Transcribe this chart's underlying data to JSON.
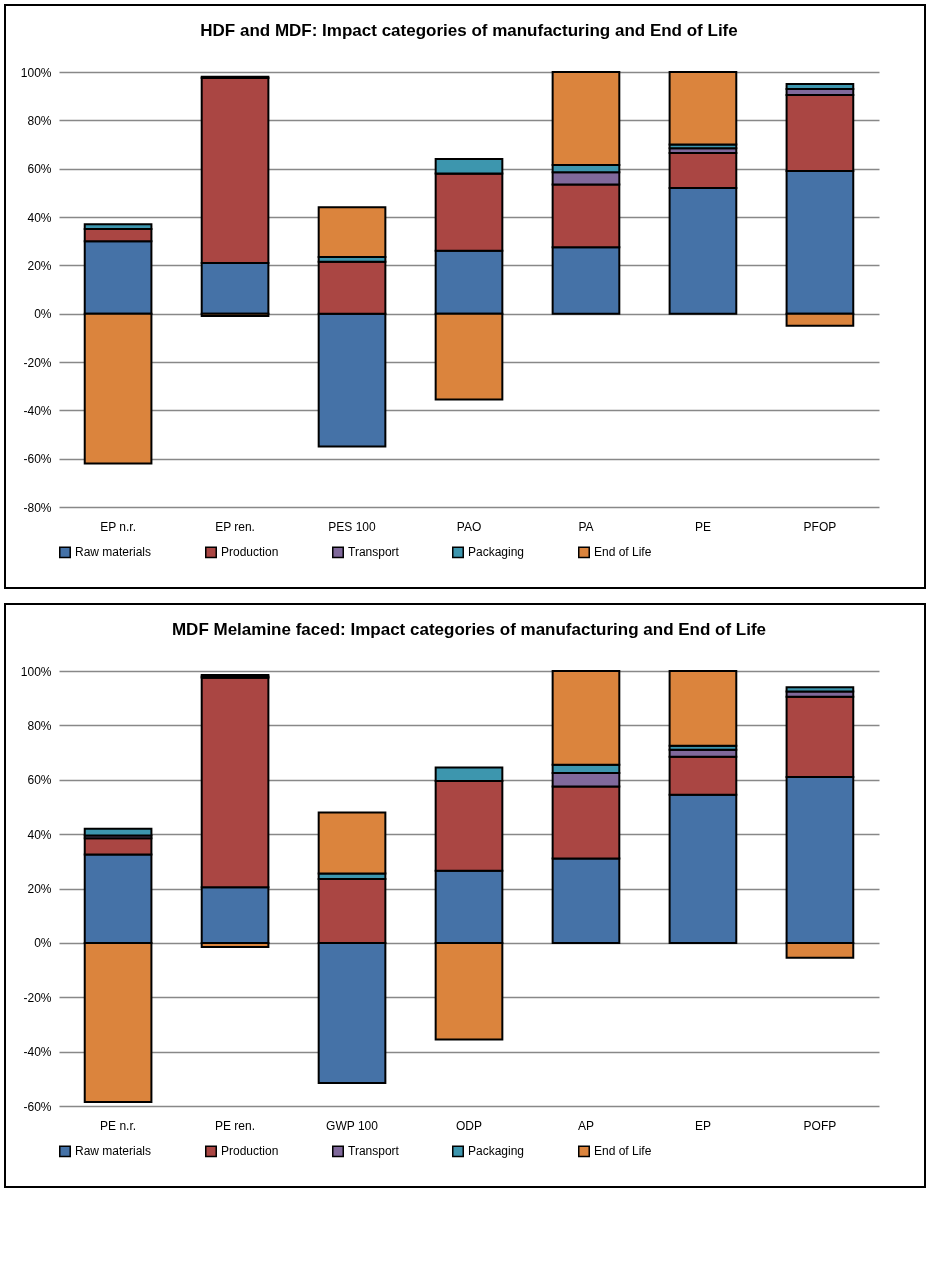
{
  "chart_data": [
    {
      "type": "bar",
      "stacked": true,
      "title": "HDF and MDF: Impact categories of manufacturing  and End of Life",
      "categories": [
        "EP n.r.",
        "EP ren.",
        "PES 100",
        "PAO",
        "PA",
        "PE",
        "PFOP"
      ],
      "series": [
        {
          "name": "Raw materials",
          "color": "#4572a7",
          "values": [
            30,
            21,
            -55,
            26,
            27.5,
            52,
            59
          ]
        },
        {
          "name": "Production",
          "color": "#aa4643",
          "values": [
            5,
            76.5,
            21.5,
            32,
            26,
            14.5,
            31.5
          ]
        },
        {
          "name": "Transport",
          "color": "#80699b",
          "values": [
            null,
            null,
            null,
            0,
            5,
            2,
            2.5
          ]
        },
        {
          "name": "Packaging",
          "color": "#3d96ae",
          "values": [
            2,
            0.5,
            2,
            6,
            3,
            1.5,
            2
          ]
        },
        {
          "name": "End of Life",
          "color": "#db843d",
          "values": [
            -62,
            -1,
            20.5,
            -35.5,
            38.5,
            30,
            -5
          ]
        }
      ],
      "ylim": [
        -80,
        100
      ],
      "yticks": [
        {
          "value": -80,
          "label": "-80%"
        },
        {
          "value": -60,
          "label": "-60%"
        },
        {
          "value": -40,
          "label": "-40%"
        },
        {
          "value": -20,
          "label": "-20%"
        },
        {
          "value": 0,
          "label": "0%"
        },
        {
          "value": 20,
          "label": "20%"
        },
        {
          "value": 40,
          "label": "40%"
        },
        {
          "value": 60,
          "label": "60%"
        },
        {
          "value": 80,
          "label": "80%"
        },
        {
          "value": 100,
          "label": "100%"
        }
      ],
      "grid": "y",
      "legend": "bottom"
    },
    {
      "type": "bar",
      "stacked": true,
      "title": "MDF Melamine faced: Impact categories of manufacturing  and End of Life",
      "categories": [
        "PE n.r.",
        "PE ren.",
        "GWP 100",
        "ODP",
        "AP",
        "EP",
        "POFP"
      ],
      "series": [
        {
          "name": "Raw materials",
          "color": "#4572a7",
          "values": [
            32.5,
            20.5,
            -51.5,
            26.5,
            31,
            54.5,
            61
          ]
        },
        {
          "name": "Production",
          "color": "#aa4643",
          "values": [
            6,
            77,
            23.5,
            33,
            26.5,
            14,
            29.5
          ]
        },
        {
          "name": "Transport",
          "color": "#80699b",
          "values": [
            1,
            0.5,
            null,
            0,
            5,
            2.5,
            2
          ]
        },
        {
          "name": "Packaging",
          "color": "#3d96ae",
          "values": [
            2.5,
            0.5,
            2,
            5,
            3,
            1.5,
            1.5
          ]
        },
        {
          "name": "End of Life",
          "color": "#db843d",
          "values": [
            -58.5,
            -1.5,
            22.5,
            -35.5,
            34.5,
            27.5,
            -5.5
          ]
        }
      ],
      "ylim": [
        -60,
        100
      ],
      "yticks": [
        {
          "value": -60,
          "label": "-60%"
        },
        {
          "value": -40,
          "label": "-40%"
        },
        {
          "value": -20,
          "label": "-20%"
        },
        {
          "value": 0,
          "label": "0%"
        },
        {
          "value": 20,
          "label": "20%"
        },
        {
          "value": 40,
          "label": "40%"
        },
        {
          "value": 60,
          "label": "60%"
        },
        {
          "value": 80,
          "label": "80%"
        },
        {
          "value": 100,
          "label": "100%"
        }
      ],
      "grid": "y",
      "legend": "bottom"
    }
  ]
}
